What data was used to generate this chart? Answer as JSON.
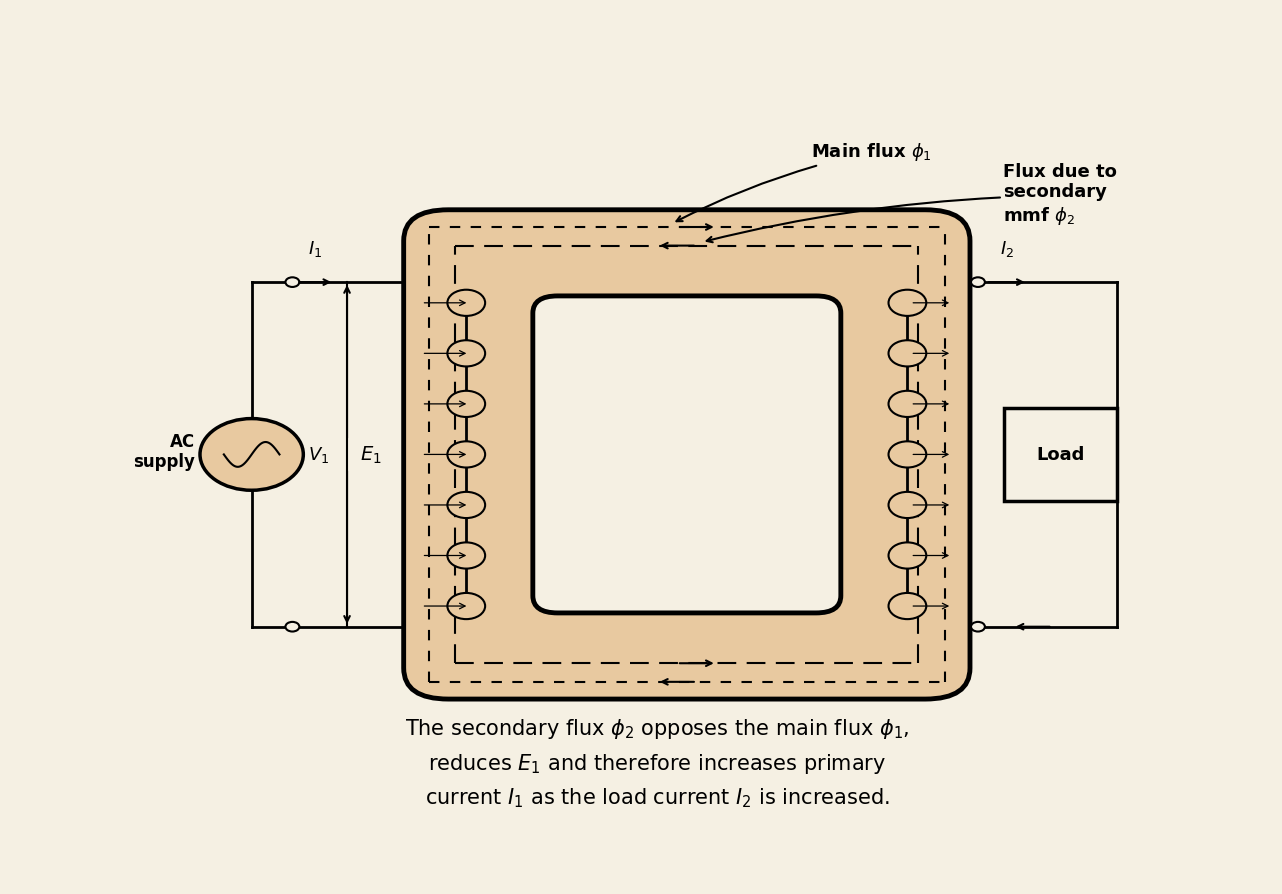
{
  "bg_color": "#f5f0e3",
  "core_color": "#e8c9a0",
  "border_color": "#000000",
  "ox1": 0.245,
  "oy1": 0.14,
  "ox2": 0.815,
  "oy2": 0.85,
  "ix1": 0.375,
  "iy1": 0.265,
  "ix2": 0.685,
  "iy2": 0.725,
  "n_turns": 7,
  "caption_line1": "The secondary flux φ₂ opposes the main flux φ₁,",
  "caption_line2": "reduces E₁ and therefore increases primary",
  "caption_line3": "current I₁ as the load current I₂ is increased.",
  "label_main_flux": "Main flux φ₁",
  "label_sec_flux": "Flux due to\nsecondary\nmmf φ₂",
  "label_I1": "I₁",
  "label_I2": "I₂",
  "label_V1": "V₁",
  "label_E1": "E₁",
  "label_ac": "AC\nsupply",
  "label_load": "Load"
}
